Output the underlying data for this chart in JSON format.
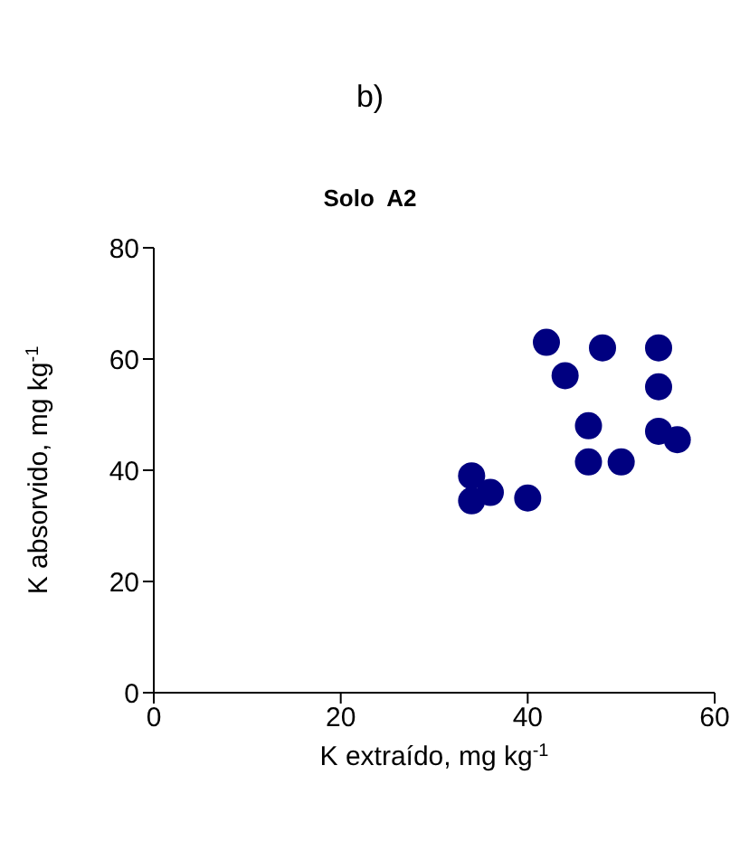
{
  "chart_data": {
    "type": "scatter",
    "title": "b)",
    "subtitle": "Solo  A2",
    "xlabel": "K extraído, mg kg$^{-1}$",
    "ylabel": "K absorvido, mg kg$^{-1}$",
    "x": [
      42,
      44,
      48,
      54,
      54,
      46.5,
      54,
      56,
      46.5,
      50,
      34,
      36,
      34,
      40
    ],
    "series": [
      {
        "color": "#000080",
        "values": [
          63,
          57,
          62,
          62,
          55,
          48,
          47,
          45.5,
          41.5,
          41.5,
          39,
          36,
          34.5,
          35
        ]
      }
    ],
    "xlim": [
      0,
      60
    ],
    "xticks": [
      0,
      20,
      40,
      60
    ],
    "ylim": [
      0,
      80
    ],
    "yticks": [
      0,
      20,
      40,
      60,
      80
    ],
    "marker": "circle",
    "grid": false
  }
}
